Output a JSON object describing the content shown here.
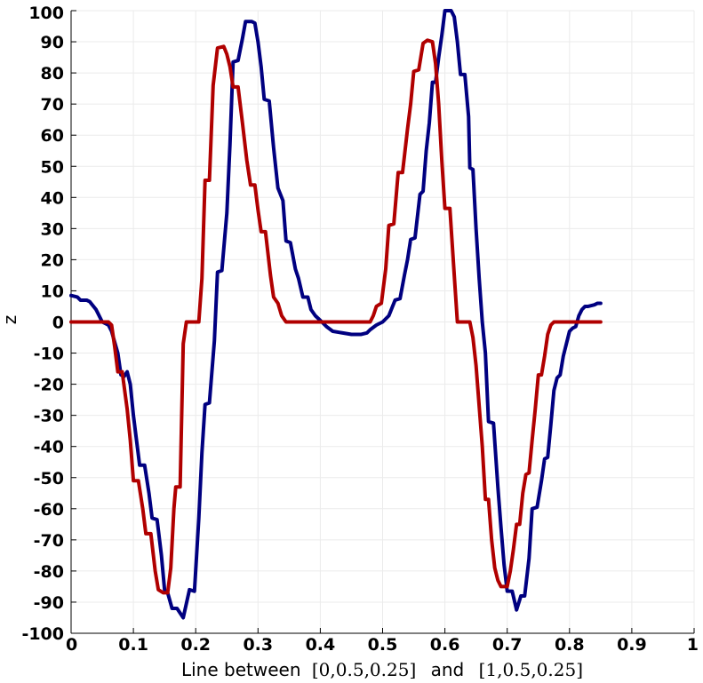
{
  "chart_data": {
    "type": "line",
    "title": "",
    "xlabel_parts": [
      "Line between",
      "[0,0.5,0.25]",
      "and",
      "[1,0.5,0.25]"
    ],
    "ylabel": "z",
    "xlim": [
      0,
      1
    ],
    "ylim": [
      -100,
      100
    ],
    "grid": true,
    "legend": "none",
    "x_ticks": [
      0,
      0.1,
      0.2,
      0.3,
      0.4,
      0.5,
      0.6,
      0.7,
      0.8,
      0.9,
      1
    ],
    "x_tick_labels": [
      "0",
      "0.1",
      "0.2",
      "0.3",
      "0.4",
      "0.5",
      "0.6",
      "0.7",
      "0.8",
      "0.9",
      "1"
    ],
    "y_ticks": [
      -100,
      -90,
      -80,
      -70,
      -60,
      -50,
      -40,
      -30,
      -20,
      -10,
      0,
      10,
      20,
      30,
      40,
      50,
      60,
      70,
      80,
      90,
      100
    ],
    "y_tick_labels": [
      "-100",
      "-90",
      "-80",
      "-70",
      "-60",
      "-50",
      "-40",
      "-30",
      "-20",
      "-10",
      "0",
      "10",
      "20",
      "30",
      "40",
      "50",
      "60",
      "70",
      "80",
      "90",
      "100"
    ],
    "series": [
      {
        "color": "#000080",
        "points": [
          [
            0.0,
            8.5
          ],
          [
            0.01,
            8.0
          ],
          [
            0.015,
            7.0
          ],
          [
            0.025,
            7.0
          ],
          [
            0.03,
            6.5
          ],
          [
            0.04,
            4.0
          ],
          [
            0.045,
            2.0
          ],
          [
            0.05,
            0.0
          ],
          [
            0.06,
            -1.0
          ],
          [
            0.065,
            -3.0
          ],
          [
            0.075,
            -10.0
          ],
          [
            0.08,
            -17.0
          ],
          [
            0.085,
            -17.5
          ],
          [
            0.09,
            -16.0
          ],
          [
            0.095,
            -20.0
          ],
          [
            0.1,
            -30.0
          ],
          [
            0.105,
            -38.0
          ],
          [
            0.11,
            -46.0
          ],
          [
            0.118,
            -46.0
          ],
          [
            0.125,
            -55.0
          ],
          [
            0.13,
            -63.0
          ],
          [
            0.138,
            -63.5
          ],
          [
            0.145,
            -75.0
          ],
          [
            0.15,
            -86.0
          ],
          [
            0.155,
            -87.0
          ],
          [
            0.162,
            -92.0
          ],
          [
            0.17,
            -92.0
          ],
          [
            0.18,
            -95.0
          ],
          [
            0.19,
            -86.0
          ],
          [
            0.198,
            -86.5
          ],
          [
            0.205,
            -63.0
          ],
          [
            0.21,
            -42.0
          ],
          [
            0.215,
            -26.5
          ],
          [
            0.222,
            -26.0
          ],
          [
            0.23,
            -6.0
          ],
          [
            0.235,
            16.0
          ],
          [
            0.242,
            16.5
          ],
          [
            0.25,
            35.0
          ],
          [
            0.255,
            57.0
          ],
          [
            0.26,
            83.5
          ],
          [
            0.268,
            84.0
          ],
          [
            0.275,
            91.0
          ],
          [
            0.28,
            96.5
          ],
          [
            0.29,
            96.5
          ],
          [
            0.295,
            96.0
          ],
          [
            0.3,
            90.0
          ],
          [
            0.305,
            82.0
          ],
          [
            0.31,
            71.5
          ],
          [
            0.318,
            71.0
          ],
          [
            0.325,
            56.0
          ],
          [
            0.332,
            43.0
          ],
          [
            0.34,
            39.0
          ],
          [
            0.345,
            26.0
          ],
          [
            0.352,
            25.5
          ],
          [
            0.36,
            17.0
          ],
          [
            0.365,
            14.0
          ],
          [
            0.372,
            8.0
          ],
          [
            0.38,
            8.0
          ],
          [
            0.385,
            4.0
          ],
          [
            0.392,
            2.0
          ],
          [
            0.4,
            0.5
          ],
          [
            0.41,
            -1.5
          ],
          [
            0.42,
            -3.0
          ],
          [
            0.435,
            -3.5
          ],
          [
            0.45,
            -4.0
          ],
          [
            0.465,
            -4.0
          ],
          [
            0.475,
            -3.5
          ],
          [
            0.48,
            -2.5
          ],
          [
            0.49,
            -1.0
          ],
          [
            0.5,
            0.0
          ],
          [
            0.51,
            2.0
          ],
          [
            0.52,
            7.0
          ],
          [
            0.528,
            7.5
          ],
          [
            0.535,
            15.0
          ],
          [
            0.54,
            20.0
          ],
          [
            0.545,
            26.5
          ],
          [
            0.552,
            27.0
          ],
          [
            0.56,
            41.0
          ],
          [
            0.565,
            42.0
          ],
          [
            0.57,
            55.0
          ],
          [
            0.575,
            64.0
          ],
          [
            0.58,
            77.0
          ],
          [
            0.585,
            77.0
          ],
          [
            0.59,
            85.0
          ],
          [
            0.595,
            92.0
          ],
          [
            0.6,
            100.0
          ],
          [
            0.61,
            100.0
          ],
          [
            0.615,
            98.0
          ],
          [
            0.62,
            90.0
          ],
          [
            0.625,
            79.5
          ],
          [
            0.632,
            79.5
          ],
          [
            0.638,
            66.0
          ],
          [
            0.64,
            49.5
          ],
          [
            0.645,
            49.0
          ],
          [
            0.65,
            30.0
          ],
          [
            0.655,
            14.0
          ],
          [
            0.66,
            0.0
          ],
          [
            0.665,
            -10.0
          ],
          [
            0.67,
            -32.0
          ],
          [
            0.678,
            -32.5
          ],
          [
            0.685,
            -53.0
          ],
          [
            0.69,
            -66.0
          ],
          [
            0.695,
            -78.0
          ],
          [
            0.7,
            -86.5
          ],
          [
            0.708,
            -86.5
          ],
          [
            0.715,
            -92.5
          ],
          [
            0.722,
            -88.0
          ],
          [
            0.728,
            -88.0
          ],
          [
            0.735,
            -76.0
          ],
          [
            0.74,
            -60.0
          ],
          [
            0.748,
            -59.5
          ],
          [
            0.755,
            -51.0
          ],
          [
            0.76,
            -44.0
          ],
          [
            0.765,
            -43.5
          ],
          [
            0.77,
            -33.0
          ],
          [
            0.775,
            -22.0
          ],
          [
            0.78,
            -18.0
          ],
          [
            0.785,
            -17.0
          ],
          [
            0.79,
            -11.0
          ],
          [
            0.795,
            -7.0
          ],
          [
            0.8,
            -3.0
          ],
          [
            0.805,
            -2.0
          ],
          [
            0.81,
            -1.5
          ],
          [
            0.815,
            2.0
          ],
          [
            0.82,
            4.0
          ],
          [
            0.825,
            5.0
          ],
          [
            0.83,
            5.0
          ],
          [
            0.84,
            5.5
          ],
          [
            0.845,
            6.0
          ],
          [
            0.85,
            6.0
          ]
        ]
      },
      {
        "color": "#b00000",
        "points": [
          [
            0.0,
            0.0
          ],
          [
            0.06,
            0.0
          ],
          [
            0.065,
            -1.0
          ],
          [
            0.07,
            -8.0
          ],
          [
            0.075,
            -16.0
          ],
          [
            0.082,
            -16.0
          ],
          [
            0.09,
            -28.0
          ],
          [
            0.095,
            -38.0
          ],
          [
            0.1,
            -51.0
          ],
          [
            0.108,
            -51.0
          ],
          [
            0.115,
            -60.0
          ],
          [
            0.12,
            -68.0
          ],
          [
            0.128,
            -68.0
          ],
          [
            0.135,
            -80.0
          ],
          [
            0.14,
            -86.0
          ],
          [
            0.148,
            -87.0
          ],
          [
            0.155,
            -87.0
          ],
          [
            0.16,
            -79.0
          ],
          [
            0.165,
            -60.0
          ],
          [
            0.168,
            -53.0
          ],
          [
            0.175,
            -53.0
          ],
          [
            0.18,
            -7.0
          ],
          [
            0.185,
            0.0
          ],
          [
            0.205,
            0.0
          ],
          [
            0.21,
            14.0
          ],
          [
            0.215,
            45.5
          ],
          [
            0.222,
            45.5
          ],
          [
            0.228,
            76.0
          ],
          [
            0.235,
            88.0
          ],
          [
            0.245,
            88.5
          ],
          [
            0.25,
            86.0
          ],
          [
            0.255,
            82.0
          ],
          [
            0.26,
            75.5
          ],
          [
            0.268,
            75.5
          ],
          [
            0.275,
            64.0
          ],
          [
            0.282,
            52.0
          ],
          [
            0.288,
            44.0
          ],
          [
            0.295,
            44.0
          ],
          [
            0.3,
            36.0
          ],
          [
            0.305,
            29.0
          ],
          [
            0.312,
            29.0
          ],
          [
            0.32,
            15.0
          ],
          [
            0.325,
            8.0
          ],
          [
            0.332,
            6.0
          ],
          [
            0.338,
            2.0
          ],
          [
            0.345,
            0.0
          ],
          [
            0.48,
            0.0
          ],
          [
            0.485,
            2.0
          ],
          [
            0.49,
            5.0
          ],
          [
            0.498,
            6.0
          ],
          [
            0.505,
            17.0
          ],
          [
            0.51,
            31.0
          ],
          [
            0.518,
            31.5
          ],
          [
            0.525,
            48.0
          ],
          [
            0.532,
            48.0
          ],
          [
            0.54,
            62.0
          ],
          [
            0.545,
            70.0
          ],
          [
            0.55,
            80.5
          ],
          [
            0.558,
            81.0
          ],
          [
            0.565,
            89.5
          ],
          [
            0.572,
            90.5
          ],
          [
            0.58,
            90.0
          ],
          [
            0.585,
            83.0
          ],
          [
            0.59,
            70.0
          ],
          [
            0.595,
            52.0
          ],
          [
            0.6,
            36.5
          ],
          [
            0.608,
            36.5
          ],
          [
            0.615,
            15.0
          ],
          [
            0.62,
            0.0
          ],
          [
            0.64,
            0.0
          ],
          [
            0.645,
            -5.0
          ],
          [
            0.65,
            -14.0
          ],
          [
            0.655,
            -27.0
          ],
          [
            0.66,
            -40.0
          ],
          [
            0.665,
            -57.0
          ],
          [
            0.67,
            -57.0
          ],
          [
            0.675,
            -70.0
          ],
          [
            0.68,
            -79.0
          ],
          [
            0.685,
            -83.0
          ],
          [
            0.69,
            -85.0
          ],
          [
            0.7,
            -85.0
          ],
          [
            0.705,
            -80.0
          ],
          [
            0.71,
            -73.0
          ],
          [
            0.715,
            -65.0
          ],
          [
            0.72,
            -65.0
          ],
          [
            0.725,
            -55.0
          ],
          [
            0.73,
            -49.0
          ],
          [
            0.735,
            -48.5
          ],
          [
            0.74,
            -38.0
          ],
          [
            0.745,
            -28.0
          ],
          [
            0.75,
            -17.0
          ],
          [
            0.755,
            -17.0
          ],
          [
            0.76,
            -11.0
          ],
          [
            0.765,
            -4.0
          ],
          [
            0.77,
            -1.0
          ],
          [
            0.775,
            0.0
          ],
          [
            0.85,
            0.0
          ]
        ]
      }
    ]
  }
}
